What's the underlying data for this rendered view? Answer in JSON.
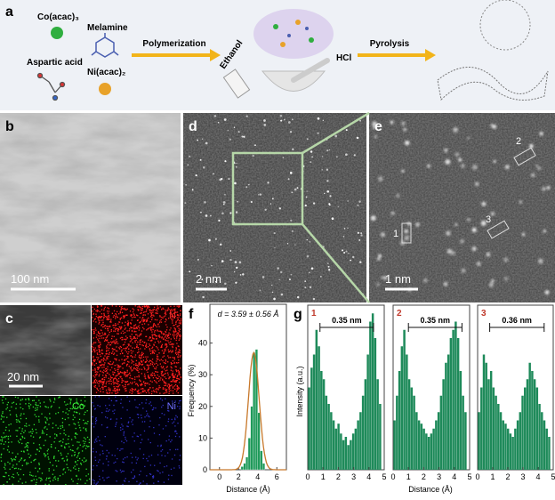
{
  "panel_a": {
    "label": "a",
    "cobalt": "Co(acac)₃",
    "melamine": "Melamine",
    "aspartic": "Aspartic acid",
    "nickel": "Ni(acac)₂",
    "step1": "Polymerization",
    "ethanol": "Ethanol",
    "hcl": "HCl",
    "step2": "Pyrolysis"
  },
  "panel_b": {
    "label": "b",
    "scale_bar": "100 nm"
  },
  "panel_c": {
    "label": "c",
    "scale_bar": "20 nm",
    "maps": [
      "N",
      "Co",
      "Ni"
    ]
  },
  "panel_d": {
    "label": "d",
    "scale_bar": "2 nm"
  },
  "panel_e": {
    "label": "e",
    "scale_bar": "1 nm",
    "sites": [
      "1",
      "2",
      "3"
    ]
  },
  "chart_data": [
    {
      "type": "histogram",
      "label": "f",
      "annotation": "d = 3.59 ± 0.56 Å",
      "x_label": "Distance (Å)",
      "y_label": "Frequency (%)",
      "bins": [
        2.25,
        2.5,
        2.75,
        3.0,
        3.25,
        3.5,
        3.75,
        4.0,
        4.25,
        4.5,
        4.75
      ],
      "values": [
        1,
        2,
        4,
        10,
        20,
        37,
        38,
        18,
        6,
        2
      ],
      "color": "#1f9a5a",
      "fit": {
        "mean": 3.59,
        "sd": 0.56,
        "peak": 37,
        "color": "#c8782a"
      },
      "xlim": [
        -1,
        7
      ],
      "xticks": [
        0,
        2,
        4,
        6
      ],
      "ylim": [
        0,
        50
      ],
      "yticks": [
        0,
        10,
        20,
        30,
        40
      ]
    },
    {
      "type": "bar",
      "label": "g",
      "x_label": "Distance (Å)",
      "y_label": "Intensity (a.u.)",
      "x": [
        0.1,
        0.26,
        0.42,
        0.58,
        0.74,
        0.9,
        1.06,
        1.22,
        1.38,
        1.54,
        1.7,
        1.86,
        2.02,
        2.18,
        2.34,
        2.5,
        2.66,
        2.82,
        2.98,
        3.14,
        3.3,
        3.46,
        3.62,
        3.78,
        3.94,
        4.1,
        4.26,
        4.42,
        4.58,
        4.74
      ],
      "xlim": [
        0,
        5
      ],
      "xticks": [
        0,
        1,
        2,
        3,
        4,
        5
      ],
      "ylim": [
        0,
        100
      ],
      "series": [
        {
          "name": "1",
          "color": "#1e8a5a",
          "annotation": "0.35 nm",
          "peaks": [
            0.8,
            4.3
          ],
          "values": [
            50,
            62,
            70,
            85,
            75,
            60,
            55,
            45,
            40,
            35,
            30,
            25,
            28,
            22,
            18,
            20,
            15,
            18,
            22,
            25,
            30,
            35,
            45,
            55,
            70,
            90,
            95,
            80,
            55,
            40
          ]
        },
        {
          "name": "2",
          "color": "#1e8a5a",
          "annotation": "0.35 nm",
          "peaks": [
            1.0,
            4.5
          ],
          "values": [
            30,
            45,
            60,
            75,
            85,
            70,
            55,
            50,
            45,
            35,
            30,
            28,
            25,
            22,
            20,
            22,
            25,
            30,
            35,
            45,
            55,
            65,
            70,
            80,
            85,
            90,
            80,
            60,
            45,
            35
          ]
        },
        {
          "name": "3",
          "color": "#1e8a5a",
          "annotation": "0.36 nm",
          "peaks": [
            0.8,
            4.4
          ],
          "values": [
            35,
            50,
            70,
            65,
            55,
            60,
            50,
            45,
            40,
            35,
            30,
            28,
            25,
            22,
            20,
            25,
            30,
            35,
            45,
            50,
            55,
            65,
            60,
            55,
            50,
            40,
            35,
            30,
            25,
            20
          ]
        }
      ]
    }
  ]
}
